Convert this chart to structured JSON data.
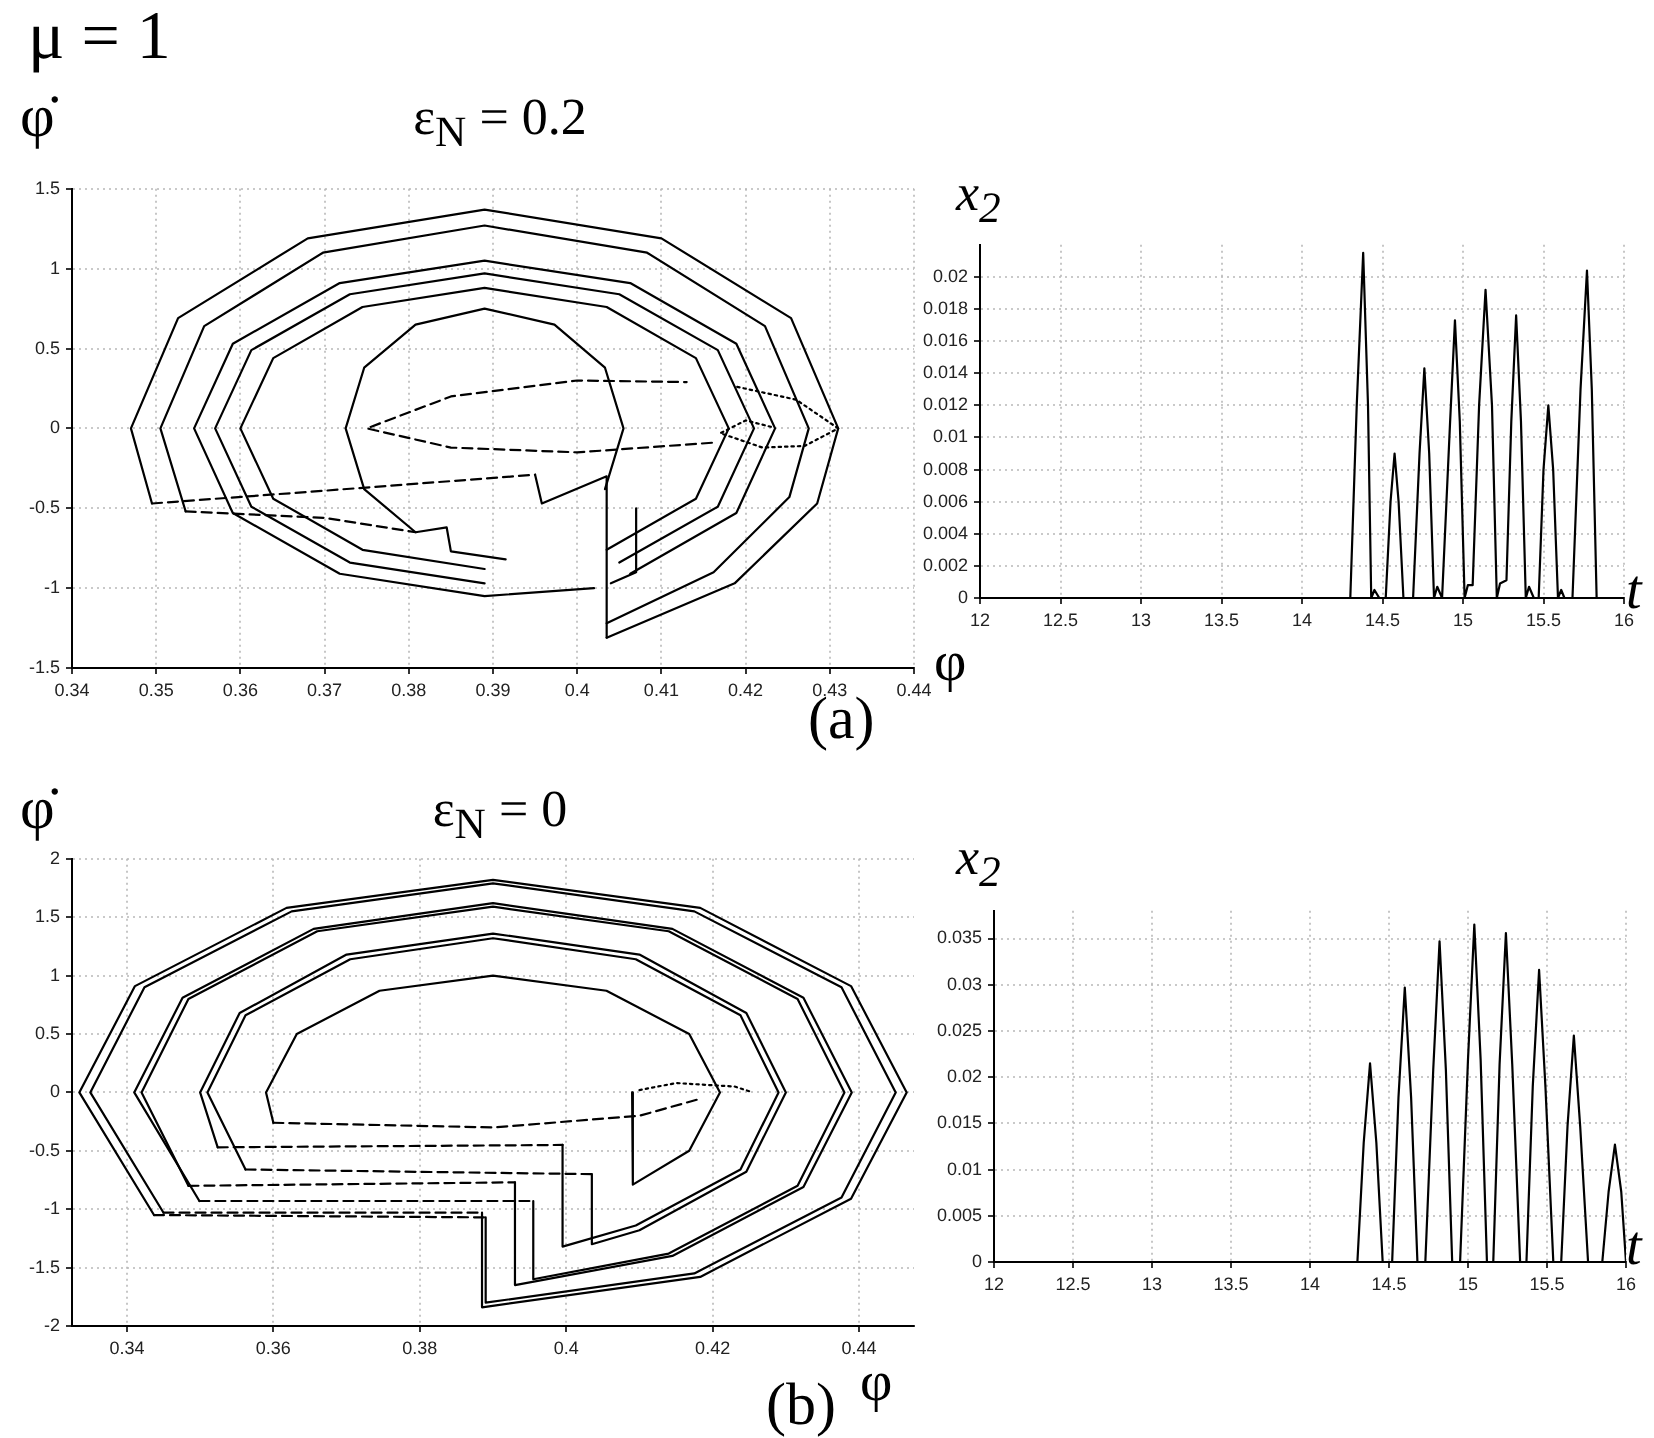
{
  "chart_data": [
    {
      "type": "line",
      "title": "ε$_{N}$ = 0.2",
      "xlabel": "φ",
      "ylabel": "φ̇",
      "annotations": [
        "μ = 1",
        "(a)"
      ],
      "xlim": [
        0.34,
        0.44
      ],
      "xticks": [
        0.34,
        0.35,
        0.36,
        0.37,
        0.38,
        0.39,
        0.4,
        0.41,
        0.42,
        0.43,
        0.44
      ],
      "ylim": [
        -1.5,
        1.5
      ],
      "yticks": [
        -1.5,
        -1,
        -0.5,
        0,
        0.5,
        1,
        1.5
      ],
      "grid": true,
      "marker": "none",
      "series": [
        {
          "color": "#000000",
          "line_style": "solid",
          "x": [
            0.4035,
            0.4187,
            0.4285,
            0.431,
            0.4254,
            0.41,
            0.389,
            0.368,
            0.3526,
            0.347,
            0.3495
          ],
          "values": [
            -1.31,
            -0.97,
            -0.47,
            0,
            0.69,
            1.19,
            1.37,
            1.19,
            0.69,
            0,
            -0.47
          ]
        },
        {
          "color": "#000000",
          "line_style": "solid",
          "x": [
            0.4035,
            0.4162,
            0.4252,
            0.4275,
            0.4223,
            0.4083,
            0.389,
            0.3698,
            0.3557,
            0.3505,
            0.3535
          ],
          "values": [
            -1.22,
            -0.9,
            -0.43,
            0,
            0.64,
            1.1,
            1.27,
            1.1,
            0.64,
            0,
            -0.52
          ]
        },
        {
          "color": "#000000",
          "line_style": "solid",
          "x": [
            0.4063,
            0.4189,
            0.4235,
            0.4189,
            0.4063,
            0.389,
            0.3718,
            0.3591,
            0.3545,
            0.3591,
            0.3718,
            0.389,
            0.402
          ],
          "values": [
            -0.91,
            -0.53,
            0,
            0.53,
            0.91,
            1.05,
            0.91,
            0.53,
            0,
            -0.53,
            -0.91,
            -1.05,
            -1.0
          ]
        },
        {
          "color": "#000000",
          "line_style": "solid",
          "x": [
            0.405,
            0.4167,
            0.421,
            0.4167,
            0.405,
            0.389,
            0.373,
            0.3613,
            0.357,
            0.3613,
            0.373,
            0.389
          ],
          "values": [
            -0.84,
            -0.49,
            0,
            0.49,
            0.84,
            0.97,
            0.84,
            0.49,
            0,
            -0.49,
            -0.84,
            -0.97
          ]
        },
        {
          "color": "#000000",
          "line_style": "solid",
          "x": [
            0.4035,
            0.4141,
            0.418,
            0.4141,
            0.4035,
            0.389,
            0.3745,
            0.3639,
            0.36,
            0.3639,
            0.3745,
            0.389
          ],
          "values": [
            -0.76,
            -0.44,
            0,
            0.44,
            0.76,
            0.88,
            0.76,
            0.44,
            0,
            -0.44,
            -0.76,
            -0.88
          ]
        },
        {
          "color": "#000000",
          "line_style": "solid",
          "x": [
            0.4033,
            0.4055,
            0.4033,
            0.3973,
            0.389,
            0.3808,
            0.3747,
            0.3725,
            0.3747,
            0.3808,
            0.3845,
            0.385,
            0.3915
          ],
          "values": [
            -0.38,
            0,
            0.38,
            0.65,
            0.75,
            0.65,
            0.38,
            0,
            -0.38,
            -0.65,
            -0.62,
            -0.77,
            -0.82
          ]
        },
        {
          "color": "#000000",
          "line_style": "solid",
          "x": [
            0.395,
            0.3958,
            0.4035,
            0.4035
          ],
          "values": [
            -0.29,
            -0.47,
            -0.3,
            -1.31
          ]
        },
        {
          "color": "#000000",
          "line_style": "solid",
          "x": [
            0.407,
            0.407,
            0.404
          ],
          "values": [
            -0.5,
            -0.9,
            -0.97
          ]
        },
        {
          "color": "#000000",
          "line_style": "dashed",
          "x": [
            0.3495,
            0.37,
            0.395
          ],
          "values": [
            -0.47,
            -0.39,
            -0.29
          ]
        },
        {
          "color": "#000000",
          "line_style": "dashed",
          "x": [
            0.3535,
            0.37,
            0.3808
          ],
          "values": [
            -0.52,
            -0.56,
            -0.65
          ]
        },
        {
          "color": "#000000",
          "line_style": "dashed",
          "x": [
            0.416,
            0.4,
            0.385,
            0.375,
            0.385,
            0.4,
            0.413
          ],
          "values": [
            -0.09,
            -0.15,
            -0.12,
            0,
            0.2,
            0.3,
            0.29
          ]
        },
        {
          "color": "#000000",
          "line_style": "dotted",
          "x": [
            0.419,
            0.426,
            0.431,
            0.427,
            0.422,
            0.417,
            0.42,
            0.423
          ],
          "values": [
            0.26,
            0.18,
            0,
            -0.11,
            -0.12,
            -0.03,
            0.05,
            0.01
          ]
        }
      ]
    },
    {
      "type": "line",
      "xlabel": "t",
      "ylabel": "x$_{2}$",
      "xlim": [
        12,
        16
      ],
      "xticks": [
        12,
        12.5,
        13,
        13.5,
        14,
        14.5,
        15,
        15.5,
        16
      ],
      "ylim": [
        0,
        0.022
      ],
      "yticks": [
        0,
        0.002,
        0.004,
        0.006,
        0.008,
        0.01,
        0.012,
        0.014,
        0.016,
        0.018,
        0.02
      ],
      "grid": true,
      "marker": "none",
      "series": [
        {
          "color": "#000000",
          "line_style": "solid",
          "x": [
            12,
            14.3,
            14.34,
            14.38,
            14.41,
            14.43,
            14.45,
            14.48,
            14.52,
            14.55,
            14.575,
            14.6,
            14.63,
            14.69,
            14.73,
            14.76,
            14.79,
            14.82,
            14.84,
            14.87,
            14.88,
            14.92,
            14.95,
            14.98,
            15.01,
            15.03,
            15.06,
            15.1,
            15.14,
            15.18,
            15.21,
            15.23,
            15.27,
            15.3,
            15.33,
            15.36,
            15.39,
            15.41,
            15.44,
            15.47,
            15.5,
            15.53,
            15.56,
            15.59,
            15.61,
            15.63,
            15.68,
            15.73,
            15.77,
            15.8,
            15.83,
            16
          ],
          "values": [
            0,
            0,
            0.012,
            0.0215,
            0.012,
            0,
            0.0005,
            0,
            0,
            0.006,
            0.009,
            0.006,
            0,
            0,
            0.009,
            0.0143,
            0.009,
            0,
            0.0007,
            0,
            0,
            0.011,
            0.0173,
            0.011,
            0,
            0.0008,
            0.0008,
            0.012,
            0.0192,
            0.012,
            0,
            0.0009,
            0.0011,
            0.011,
            0.0176,
            0.011,
            0,
            0.0007,
            0,
            0,
            0.008,
            0.012,
            0.008,
            0,
            0.0005,
            0,
            0,
            0.013,
            0.0204,
            0.013,
            0,
            0
          ]
        }
      ]
    },
    {
      "type": "line",
      "title": "ε$_{N}$ = 0",
      "xlabel": "φ",
      "ylabel": "φ̇",
      "annotations": [
        "(b)"
      ],
      "xlim": [
        0.3325,
        0.4475
      ],
      "xticks": [
        0.34,
        0.36,
        0.38,
        0.4,
        0.42,
        0.44
      ],
      "ylim": [
        -2,
        2
      ],
      "yticks": [
        -2,
        -1.5,
        -1,
        -0.5,
        0,
        0.5,
        1,
        1.5,
        2
      ],
      "grid": true,
      "marker": "none",
      "series": [
        {
          "color": "#000000",
          "line_style": "solid",
          "x": [
            0.3885,
            0.3885,
            0.4183,
            0.4389,
            0.4465,
            0.4389,
            0.4183,
            0.39,
            0.3618,
            0.3411,
            0.3335,
            0.3437
          ],
          "values": [
            -1.03,
            -1.84,
            -1.58,
            -0.91,
            0,
            0.91,
            1.58,
            1.82,
            1.58,
            0.91,
            0,
            -1.05
          ]
        },
        {
          "color": "#000000",
          "line_style": "solid",
          "x": [
            0.389,
            0.389,
            0.4175,
            0.4376,
            0.445,
            0.4376,
            0.4175,
            0.39,
            0.3625,
            0.3424,
            0.335,
            0.345
          ],
          "values": [
            -1.07,
            -1.8,
            -1.55,
            -0.9,
            0,
            0.9,
            1.55,
            1.79,
            1.55,
            0.9,
            0,
            -1.03
          ]
        },
        {
          "color": "#000000",
          "line_style": "solid",
          "x": [
            0.393,
            0.393,
            0.4145,
            0.4324,
            0.439,
            0.4324,
            0.4145,
            0.39,
            0.3655,
            0.3476,
            0.341,
            0.3499
          ],
          "values": [
            -0.77,
            -1.65,
            -1.4,
            -0.81,
            0,
            0.81,
            1.4,
            1.62,
            1.4,
            0.81,
            0,
            -0.93
          ]
        },
        {
          "color": "#000000",
          "line_style": "solid",
          "x": [
            0.3955,
            0.3955,
            0.414,
            0.4316,
            0.438,
            0.4316,
            0.414,
            0.39,
            0.366,
            0.3484,
            0.342,
            0.3484
          ],
          "values": [
            -0.93,
            -1.6,
            -1.38,
            -0.8,
            0,
            0.8,
            1.38,
            1.59,
            1.38,
            0.8,
            0,
            -0.8
          ]
        },
        {
          "color": "#000000",
          "line_style": "solid",
          "x": [
            0.4035,
            0.4035,
            0.41,
            0.4246,
            0.43,
            0.4246,
            0.41,
            0.39,
            0.37,
            0.3554,
            0.35,
            0.3524
          ],
          "values": [
            -0.7,
            -1.3,
            -1.18,
            -0.68,
            0,
            0.68,
            1.18,
            1.36,
            1.18,
            0.68,
            0,
            -0.47
          ]
        },
        {
          "color": "#000000",
          "line_style": "solid",
          "x": [
            0.3995,
            0.3995,
            0.4095,
            0.4238,
            0.429,
            0.4238,
            0.4095,
            0.39,
            0.3705,
            0.3562,
            0.351,
            0.3562
          ],
          "values": [
            -0.45,
            -1.32,
            -1.14,
            -0.66,
            0,
            0.66,
            1.14,
            1.32,
            1.14,
            0.66,
            0,
            -0.66
          ]
        },
        {
          "color": "#000000",
          "line_style": "solid",
          "x": [
            0.409,
            0.4091,
            0.4168,
            0.421,
            0.4168,
            0.4055,
            0.39,
            0.3745,
            0.3632,
            0.359,
            0.36
          ],
          "values": [
            0,
            -0.79,
            -0.5,
            0,
            0.5,
            0.87,
            1.0,
            0.87,
            0.5,
            0,
            -0.26
          ]
        },
        {
          "color": "#000000",
          "line_style": "dashed",
          "x": [
            0.36,
            0.39,
            0.41,
            0.418
          ],
          "values": [
            -0.26,
            -0.3,
            -0.2,
            -0.06
          ]
        },
        {
          "color": "#000000",
          "line_style": "dashed",
          "x": [
            0.3562,
            0.4035
          ],
          "values": [
            -0.66,
            -0.7
          ]
        },
        {
          "color": "#000000",
          "line_style": "dashed",
          "x": [
            0.3524,
            0.3995
          ],
          "values": [
            -0.47,
            -0.45
          ]
        },
        {
          "color": "#000000",
          "line_style": "dashed",
          "x": [
            0.3484,
            0.393
          ],
          "values": [
            -0.8,
            -0.77
          ]
        },
        {
          "color": "#000000",
          "line_style": "dashed",
          "x": [
            0.3499,
            0.3955
          ],
          "values": [
            -0.93,
            -0.93
          ]
        },
        {
          "color": "#000000",
          "line_style": "dashed",
          "x": [
            0.345,
            0.3885
          ],
          "values": [
            -1.03,
            -1.03
          ]
        },
        {
          "color": "#000000",
          "line_style": "dashed",
          "x": [
            0.3437,
            0.389
          ],
          "values": [
            -1.05,
            -1.07
          ]
        },
        {
          "color": "#000000",
          "line_style": "dotted",
          "x": [
            0.41,
            0.415,
            0.423,
            0.425
          ],
          "values": [
            0.02,
            0.08,
            0.05,
            0.01
          ]
        }
      ]
    },
    {
      "type": "line",
      "xlabel": "t",
      "ylabel": "x$_{2}$",
      "xlim": [
        12,
        16
      ],
      "xticks": [
        12,
        12.5,
        13,
        13.5,
        14,
        14.5,
        15,
        15.5,
        16
      ],
      "ylim": [
        0,
        0.038
      ],
      "yticks": [
        0,
        0.005,
        0.01,
        0.015,
        0.02,
        0.025,
        0.03,
        0.035
      ],
      "grid": true,
      "marker": "none",
      "series": [
        {
          "color": "#000000",
          "line_style": "solid",
          "x": [
            12,
            14.3,
            14.34,
            14.38,
            14.42,
            14.46,
            14.52,
            14.56,
            14.6,
            14.64,
            14.68,
            14.73,
            14.78,
            14.82,
            14.86,
            14.9,
            14.95,
            15.0,
            15.04,
            15.08,
            15.12,
            15.16,
            15.2,
            15.24,
            15.28,
            15.33,
            15.37,
            15.41,
            15.45,
            15.49,
            15.54,
            15.59,
            15.63,
            15.67,
            15.71,
            15.76,
            15.85,
            15.89,
            15.93,
            15.97,
            16
          ],
          "values": [
            0,
            0,
            0.0129,
            0.0215,
            0.0129,
            0,
            0,
            0.0178,
            0.0297,
            0.0178,
            0,
            0,
            0.0208,
            0.0347,
            0.0208,
            0,
            0,
            0.0219,
            0.0365,
            0.0219,
            0,
            0,
            0.0214,
            0.0356,
            0.0214,
            0,
            0,
            0.019,
            0.0316,
            0.019,
            0,
            0,
            0.0147,
            0.0245,
            0.0147,
            0,
            0,
            0.0076,
            0.0127,
            0.0076,
            0
          ]
        }
      ]
    }
  ]
}
